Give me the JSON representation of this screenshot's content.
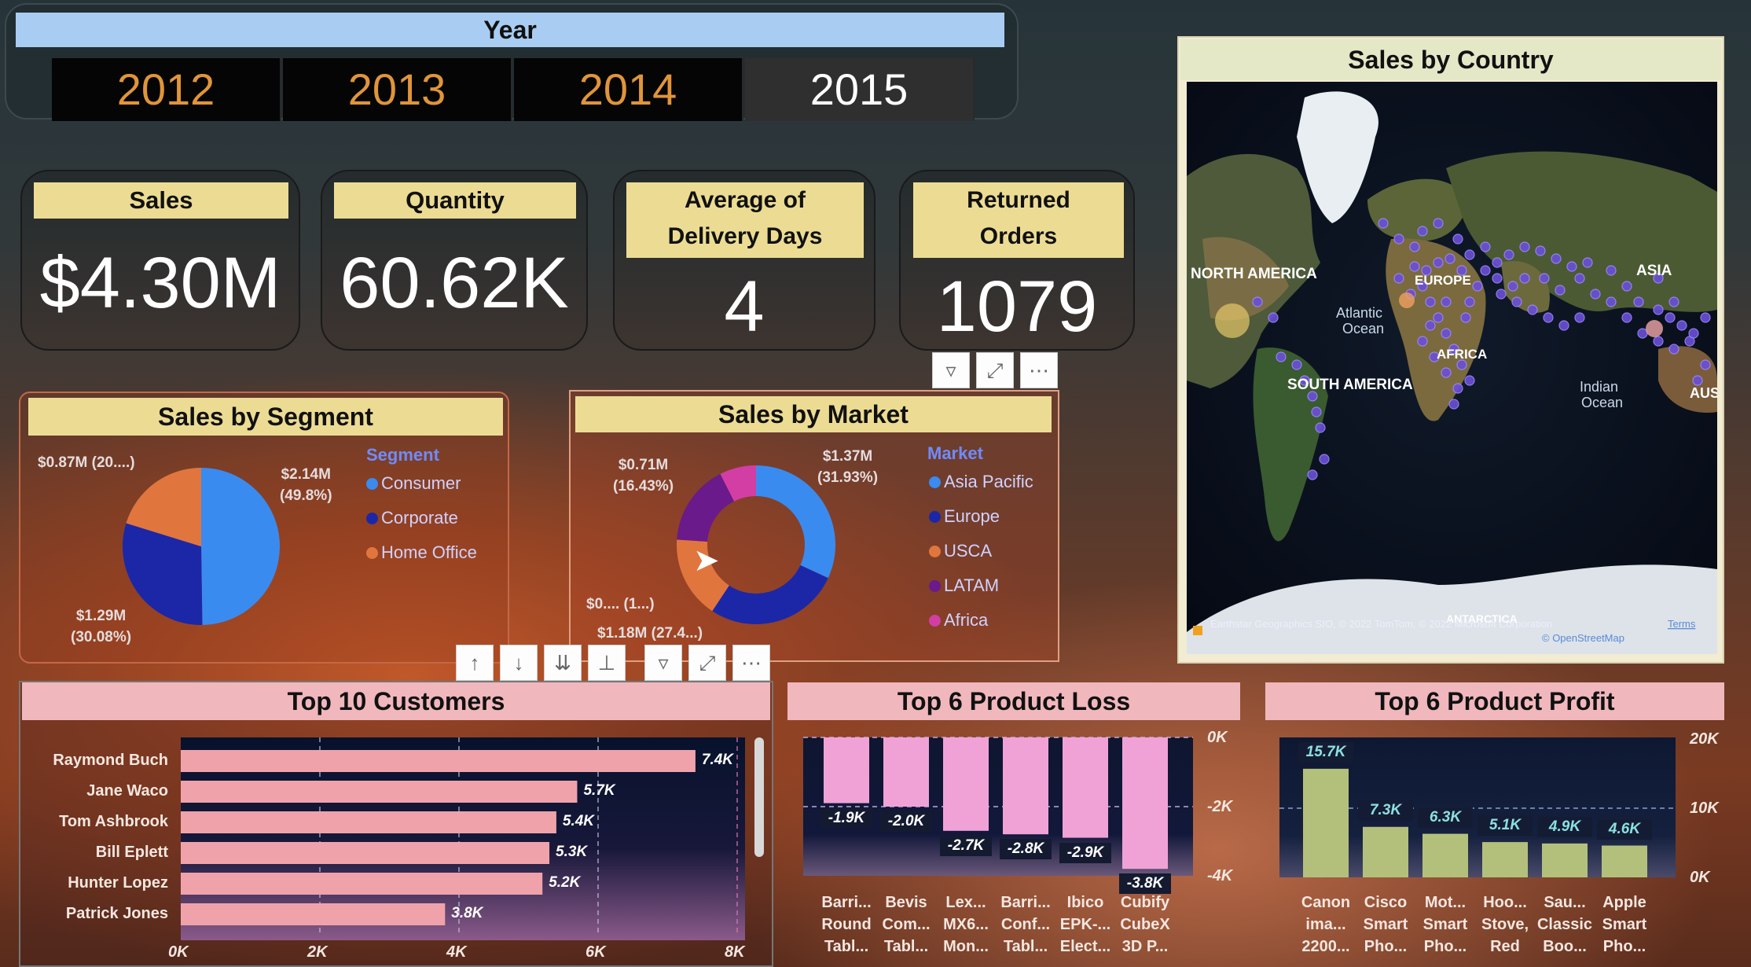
{
  "year_slicer": {
    "header": "Year",
    "years": [
      "2012",
      "2013",
      "2014",
      "2015"
    ],
    "selected": "2015"
  },
  "kpis": {
    "sales": {
      "title": "Sales",
      "value": "$4.30M"
    },
    "quantity": {
      "title": "Quantity",
      "value": "60.62K"
    },
    "avg_delivery": {
      "title_line1": "Average of",
      "title_line2": "Delivery Days",
      "value": "4"
    },
    "returned": {
      "title_line1": "Returned",
      "title_line2": "Orders",
      "value": "1079"
    }
  },
  "segment_chart": {
    "title": "Sales by Segment",
    "legend_title": "Segment",
    "labels": {
      "consumer_line1": "$2.14M",
      "consumer_line2": "(49.8%)",
      "corporate_line1": "$1.29M",
      "corporate_line2": "(30.08%)",
      "home_office": "$0.87M (20....)"
    }
  },
  "market_chart": {
    "title": "Sales by Market",
    "legend_title": "Market",
    "labels": {
      "asia_line1": "$1.37M",
      "asia_line2": "(31.93%)",
      "europe": "$1.18M (27.4...)",
      "usca": "$0.... (1...)",
      "latam_line1": "$0.71M",
      "latam_line2": "(16.43%)"
    }
  },
  "map": {
    "title": "Sales by Country",
    "labels": {
      "north_america": "NORTH AMERICA",
      "south_america": "SOUTH AMERICA",
      "europe": "EUROPE",
      "asia": "ASIA",
      "africa": "AFRICA",
      "atlantic_line1": "Atlantic",
      "atlantic_line2": "Ocean",
      "indian_line1": "Indian",
      "indian_line2": "Ocean",
      "australia": "AUS",
      "antarctica": "ANTARCTICA"
    },
    "attribution": "Earthstar Geographics SIO, © 2022 TomTom, © 2022 Microsoft Corporation",
    "terms": "Terms",
    "osm": "© OpenStreetMap"
  },
  "customers_chart": {
    "title": "Top 10 Customers"
  },
  "loss_chart": {
    "title": "Top 6 Product Loss",
    "categories": [
      [
        "Barri...",
        "Round",
        "Tabl..."
      ],
      [
        "Bevis",
        "Com...",
        "Tabl..."
      ],
      [
        "Lex...",
        "MX6...",
        "Mon..."
      ],
      [
        "Barri...",
        "Conf...",
        "Tabl..."
      ],
      [
        "Ibico",
        "EPK-...",
        "Elect..."
      ],
      [
        "Cubify",
        "CubeX",
        "3D P..."
      ]
    ]
  },
  "profit_chart": {
    "title": "Top 6 Product Profit",
    "categories": [
      [
        "Canon",
        "ima...",
        "2200..."
      ],
      [
        "Cisco",
        "Smart",
        "Pho..."
      ],
      [
        "Mot...",
        "Smart",
        "Pho..."
      ],
      [
        "Hoo...",
        "Stove,",
        "Red"
      ],
      [
        "Sau...",
        "Classic",
        "Boo..."
      ],
      [
        "Apple",
        "Smart",
        "Pho..."
      ]
    ]
  },
  "chart_data": [
    {
      "type": "pie",
      "title": "Sales by Segment",
      "legend": "top-right",
      "categories": [
        "Consumer",
        "Corporate",
        "Home Office"
      ],
      "values": [
        2.14,
        1.29,
        0.87
      ],
      "percent": [
        49.8,
        30.08,
        20.12
      ],
      "colors": [
        "#3a8bf0",
        "#1c27a8",
        "#e0763e"
      ]
    },
    {
      "type": "pie",
      "title": "Sales by Market",
      "legend": "right",
      "categories": [
        "Asia Pacific",
        "Europe",
        "USCA",
        "LATAM",
        "Africa"
      ],
      "values": [
        1.37,
        1.18,
        0.72,
        0.71,
        0.32
      ],
      "percent": [
        31.93,
        27.44,
        16.7,
        16.43,
        7.5
      ],
      "colors": [
        "#3a8bf0",
        "#1c27a8",
        "#e0763e",
        "#6a1a8a",
        "#d23ea4"
      ]
    },
    {
      "type": "bar",
      "title": "Top 10 Customers",
      "orientation": "horizontal",
      "categories": [
        "Raymond Buch",
        "Jane Waco",
        "Tom Ashbrook",
        "Bill Eplett",
        "Hunter Lopez",
        "Patrick Jones"
      ],
      "values": [
        7.4,
        5.7,
        5.4,
        5.3,
        5.2,
        3.8
      ],
      "value_labels": [
        "7.4K",
        "5.7K",
        "5.4K",
        "5.3K",
        "5.2K",
        "3.8K"
      ],
      "xlim": [
        0,
        8
      ],
      "x_ticks": [
        "0K",
        "2K",
        "4K",
        "6K",
        "8K"
      ],
      "color": "#f0a2ab"
    },
    {
      "type": "bar",
      "title": "Top 6 Product Loss",
      "values": [
        -1.9,
        -2.0,
        -2.7,
        -2.8,
        -2.9,
        -3.8
      ],
      "value_labels": [
        "-1.9K",
        "-2.0K",
        "-2.7K",
        "-2.8K",
        "-2.9K",
        "-3.8K"
      ],
      "ylim": [
        -4,
        0
      ],
      "y_ticks": [
        "0K",
        "-2K",
        "-4K"
      ],
      "color": "#f0a2d6"
    },
    {
      "type": "bar",
      "title": "Top 6 Product Profit",
      "values": [
        15.7,
        7.3,
        6.3,
        5.1,
        4.9,
        4.6
      ],
      "value_labels": [
        "15.7K",
        "7.3K",
        "6.3K",
        "5.1K",
        "4.9K",
        "4.6K"
      ],
      "ylim": [
        0,
        20
      ],
      "y_ticks": [
        "20K",
        "10K",
        "0K"
      ],
      "color": "#b3c07c"
    }
  ]
}
